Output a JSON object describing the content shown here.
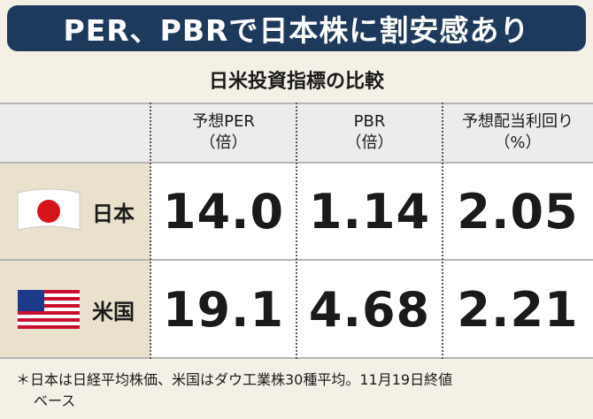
{
  "header": {
    "title": "PER、PBRで日本株に割安感あり",
    "subtitle": "日米投資指標の比較"
  },
  "table": {
    "columns": [
      {
        "label": "予想PER",
        "unit": "（倍）"
      },
      {
        "label": "PBR",
        "unit": "（倍）"
      },
      {
        "label": "予想配当利回り",
        "unit": "（%）"
      }
    ],
    "rows": [
      {
        "label": "日本",
        "cells": [
          "14.0",
          "1.14",
          "2.05"
        ]
      },
      {
        "label": "米国",
        "cells": [
          "19.1",
          "4.68",
          "2.21"
        ]
      }
    ]
  },
  "footnote": [
    "＊日本は日経平均株価、米国はダウ工業株30種平均。11月19日終値",
    "ベース"
  ]
}
